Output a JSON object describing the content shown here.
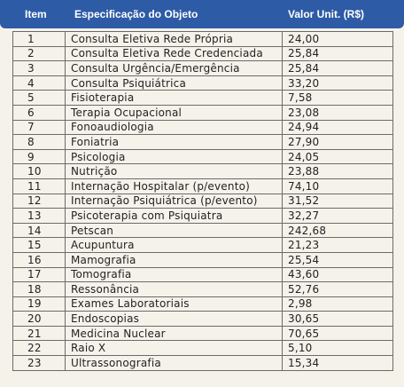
{
  "header": {
    "columns": [
      "Item",
      "Especificação do Objeto",
      "Valor Unit. (R$)"
    ]
  },
  "table": {
    "rows": [
      [
        "1",
        "Consulta Eletiva Rede Própria",
        "24,00"
      ],
      [
        "2",
        "Consulta Eletiva Rede Credenciada",
        "25,84"
      ],
      [
        "3",
        "Consulta Urgência/Emergência",
        "25,84"
      ],
      [
        "4",
        "Consulta Psiquiátrica",
        "33,20"
      ],
      [
        "5",
        "Fisioterapia",
        "7,58"
      ],
      [
        "6",
        "Terapia Ocupacional",
        "23,08"
      ],
      [
        "7",
        "Fonoaudiologia",
        "24,94"
      ],
      [
        "8",
        "Foniatria",
        "27,90"
      ],
      [
        "9",
        "Psicologia",
        "24,05"
      ],
      [
        "10",
        "Nutrição",
        "23,88"
      ],
      [
        "11",
        "Internação Hospitalar (p/evento)",
        "74,10"
      ],
      [
        "12",
        "Internação Psiquiátrica (p/evento)",
        "31,52"
      ],
      [
        "13",
        "Psicoterapia com Psiquiatra",
        "32,27"
      ],
      [
        "14",
        "Petscan",
        "242,68"
      ],
      [
        "15",
        "Acupuntura",
        "21,23"
      ],
      [
        "16",
        "Mamografia",
        "25,54"
      ],
      [
        "17",
        "Tomografia",
        "43,60"
      ],
      [
        "18",
        "Ressonância",
        "52,76"
      ],
      [
        "19",
        "Exames Laboratoriais",
        "2,98"
      ],
      [
        "20",
        "Endoscopias",
        "30,65"
      ],
      [
        "21",
        "Medicina Nuclear",
        "70,65"
      ],
      [
        "22",
        "Raio X",
        "5,10"
      ],
      [
        "23",
        "Ultrassonografia",
        "15,34"
      ]
    ]
  }
}
